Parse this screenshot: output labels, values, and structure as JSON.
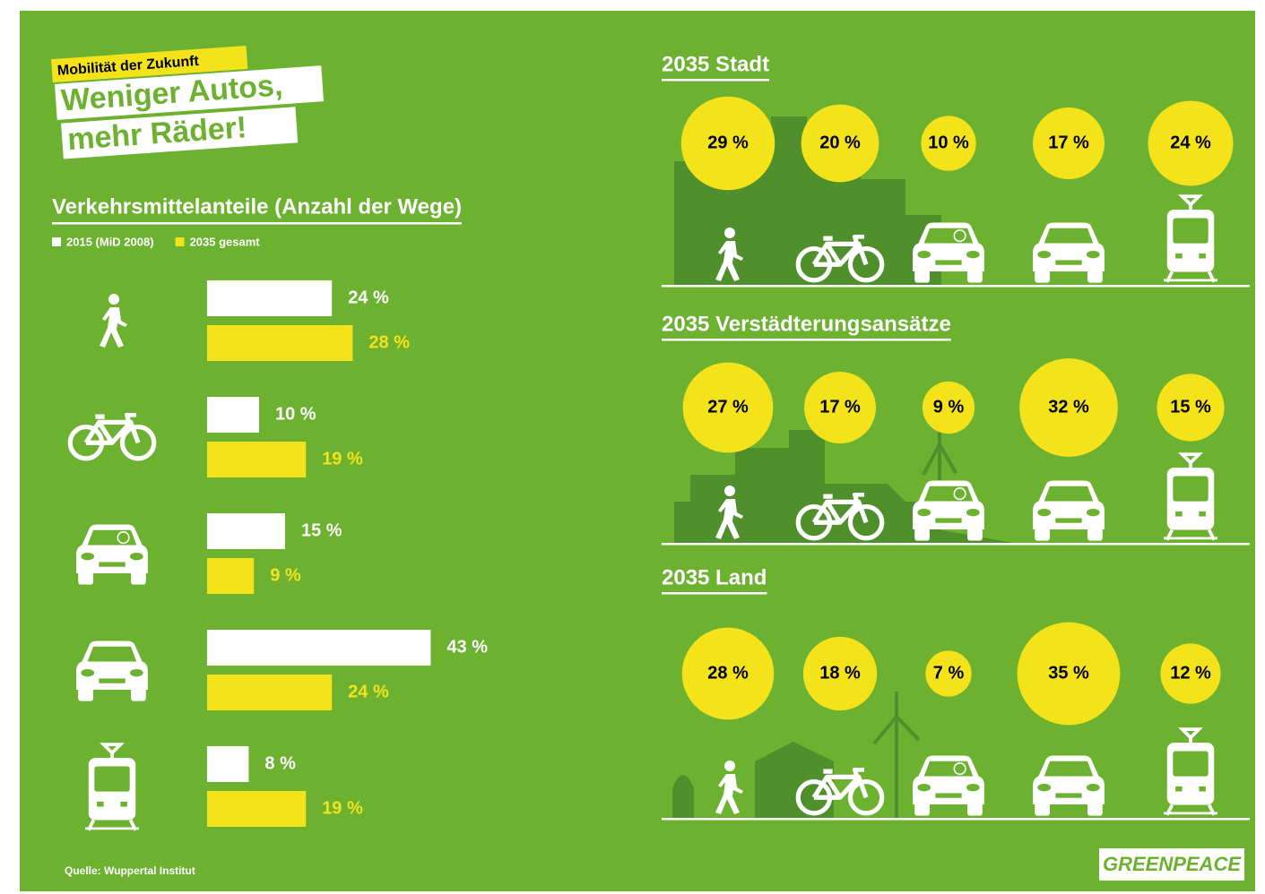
{
  "kicker": "Mobilität der Zukunft",
  "title": [
    "Weniger Autos,",
    "mehr Räder!"
  ],
  "source": "Quelle: Wuppertal Institut",
  "logo": "GREENPEACE",
  "chart_data": [
    {
      "type": "bar",
      "orientation": "horizontal",
      "title": "Verkehrsmittelanteile (Anzahl der Wege)",
      "categories": [
        null,
        null,
        null,
        null,
        null
      ],
      "series": [
        {
          "name": "2015 (MiD 2008)",
          "color": "#ffffff",
          "values": [
            24,
            10,
            15,
            43,
            8
          ],
          "value_labels": [
            "24 %",
            "10 %",
            "15 %",
            "43 %",
            "8 %"
          ]
        },
        {
          "name": "2035 gesamt",
          "color": "#f4e31b",
          "values": [
            28,
            19,
            9,
            24,
            19
          ],
          "value_labels": [
            "28 %",
            "19 %",
            "9 %",
            "24 %",
            "19 %"
          ]
        }
      ]
    },
    {
      "type": "bubble",
      "title": "2035 Stadt",
      "categories": [
        null,
        null,
        null,
        null,
        null
      ],
      "color": "#f4e31b",
      "values": [
        29,
        20,
        10,
        17,
        24
      ],
      "value_labels": [
        "29 %",
        "20 %",
        "10 %",
        "17 %",
        "24 %"
      ]
    },
    {
      "type": "bubble",
      "title": "2035 Verstädterungsansätze",
      "categories": [
        null,
        null,
        null,
        null,
        null
      ],
      "color": "#f4e31b",
      "values": [
        27,
        17,
        9,
        32,
        15
      ],
      "value_labels": [
        "27 %",
        "17 %",
        "9 %",
        "32 %",
        "15 %"
      ]
    },
    {
      "type": "bubble",
      "title": "2035 Land",
      "categories": [
        null,
        null,
        null,
        null,
        null
      ],
      "color": "#f4e31b",
      "values": [
        28,
        18,
        7,
        35,
        12
      ],
      "value_labels": [
        "28 %",
        "18 %",
        "7 %",
        "35 %",
        "12 %"
      ]
    }
  ]
}
